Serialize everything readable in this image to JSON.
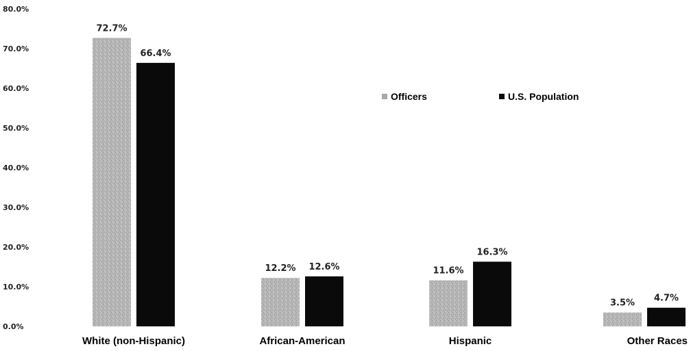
{
  "chart_data": {
    "type": "bar",
    "title": "",
    "xlabel": "",
    "ylabel": "",
    "categories": [
      "White (non-Hispanic)",
      "African-American",
      "Hispanic",
      "Other Races"
    ],
    "series": [
      {
        "name": "Officers",
        "values": [
          72.7,
          12.2,
          11.6,
          3.5
        ],
        "labels": [
          "72.7%",
          "12.2%",
          "11.6%",
          "3.5%"
        ],
        "color": "#b4b4b4"
      },
      {
        "name": "U.S. Population",
        "values": [
          66.4,
          12.6,
          16.3,
          4.7
        ],
        "labels": [
          "66.4%",
          "12.6%",
          "16.3%",
          "4.7%"
        ],
        "color": "#0a0a0a"
      }
    ],
    "ylim": [
      0,
      80
    ],
    "y_ticks": [
      "0.0%",
      "10.0%",
      "20.0%",
      "30.0%",
      "40.0%",
      "50.0%",
      "60.0%",
      "70.0%",
      "80.0%"
    ],
    "grid": false,
    "legend_position": "top-right"
  }
}
